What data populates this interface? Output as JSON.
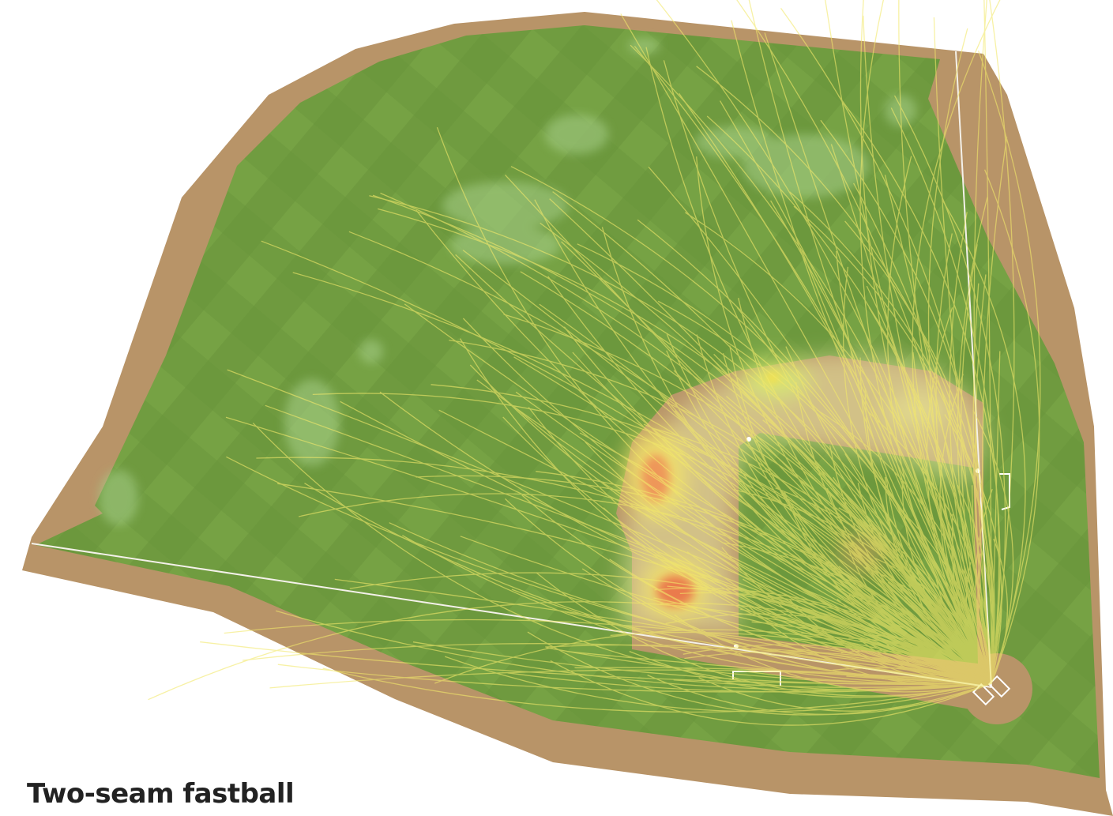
{
  "caption": "Two-seam fastball"
}
